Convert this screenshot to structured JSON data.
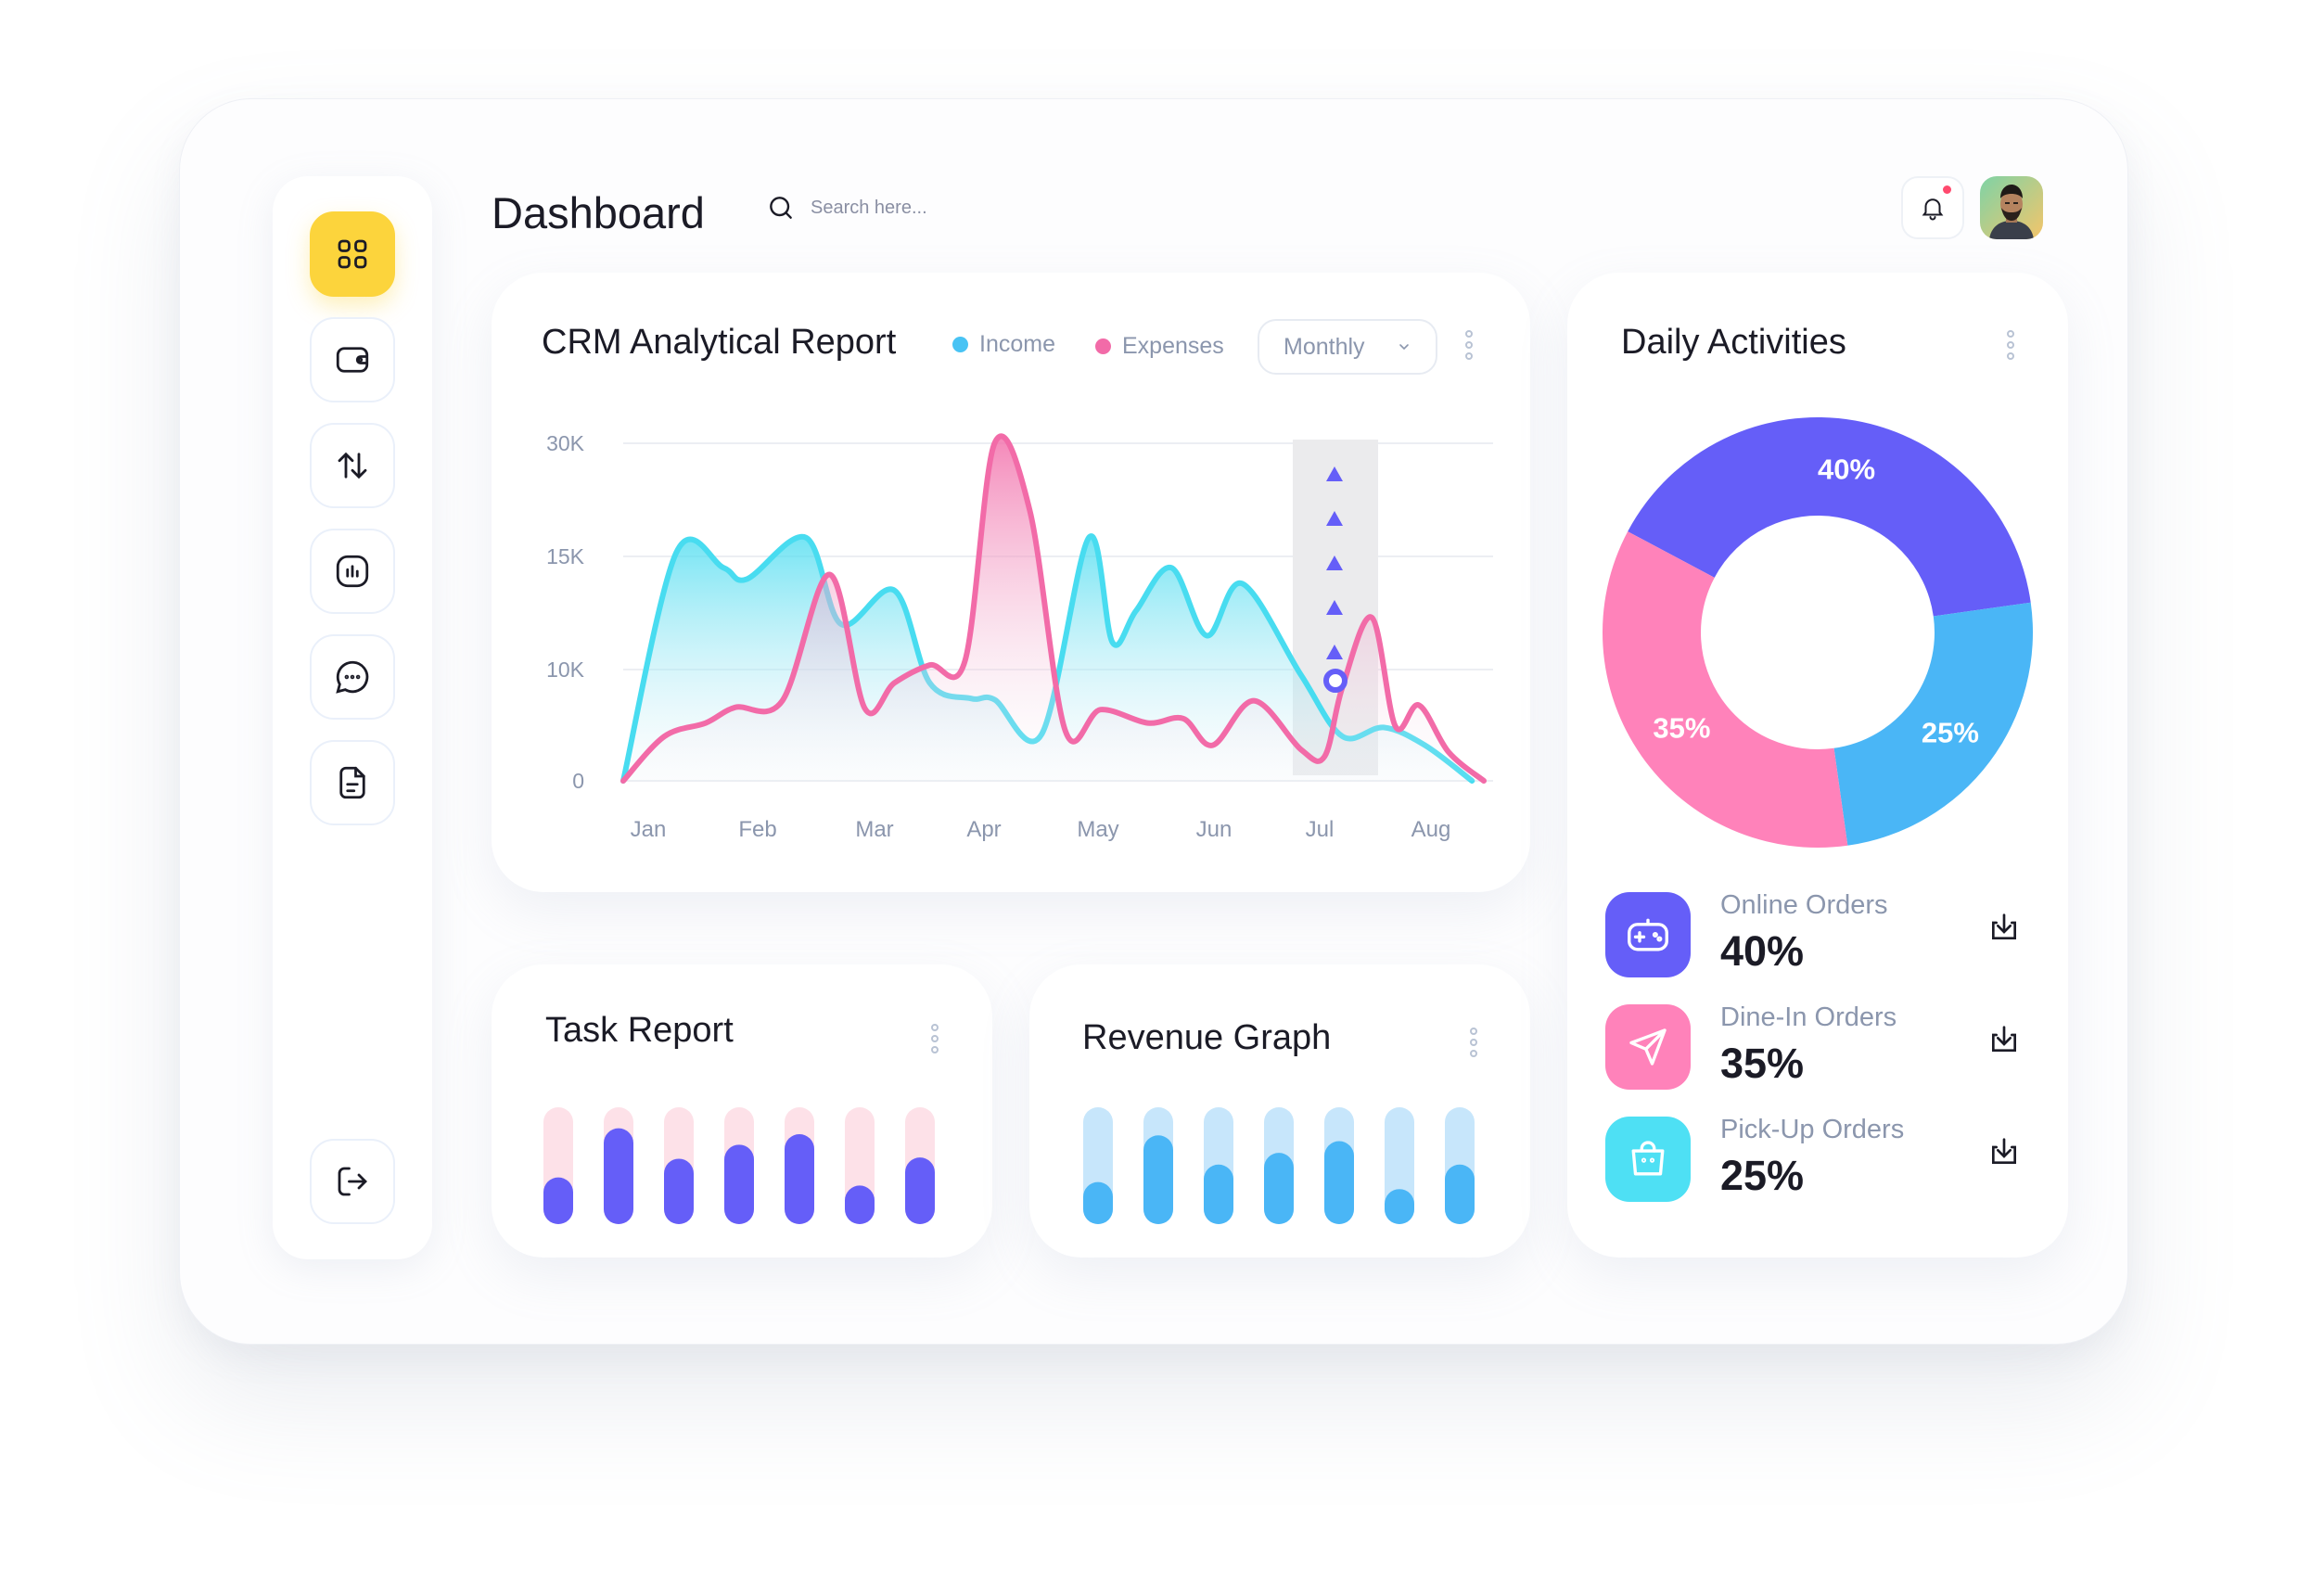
{
  "header": {
    "title": "Dashboard",
    "search_placeholder": "Search here..."
  },
  "sidebar": {
    "items": [
      {
        "icon": "grid-icon",
        "active": true
      },
      {
        "icon": "wallet-icon",
        "active": false
      },
      {
        "icon": "transfer-icon",
        "active": false
      },
      {
        "icon": "chart-icon",
        "active": false
      },
      {
        "icon": "chat-icon",
        "active": false
      },
      {
        "icon": "document-icon",
        "active": false
      }
    ],
    "logout_icon": "logout-icon"
  },
  "crm": {
    "title": "CRM Analytical Report",
    "legend": [
      {
        "label": "Income",
        "color": "#48c3f4"
      },
      {
        "label": "Expenses",
        "color": "#f26ba8"
      }
    ],
    "period": "Monthly"
  },
  "chart_data": [
    {
      "type": "area",
      "title": "CRM Analytical Report",
      "categories": [
        "Jan",
        "Feb",
        "Mar",
        "Apr",
        "May",
        "Jun",
        "Jul",
        "Aug"
      ],
      "y_ticks": [
        "30K",
        "15K",
        "10K",
        "0"
      ],
      "legend_placement": "top",
      "grid": true,
      "series": [
        {
          "name": "Income",
          "color": "#48dcf0",
          "x": [
            0,
            0.45,
            0.85,
            1.05,
            1.55,
            1.85,
            2.3,
            2.6,
            2.95,
            3.15,
            3.55,
            3.95,
            4.15,
            4.35,
            4.65,
            4.95,
            5.25,
            5.75,
            6.1,
            6.45,
            6.8,
            7.2
          ],
          "y": [
            0,
            15.5,
            14.5,
            14,
            17.5,
            12,
            13.5,
            8.8,
            7.4,
            7.3,
            4.2,
            17.5,
            11.2,
            12.6,
            14.5,
            11.5,
            13.8,
            9.5,
            4,
            4.8,
            3.2,
            0
          ]
        },
        {
          "name": "Expenses",
          "color": "#f26ba8",
          "x": [
            0,
            0.35,
            0.7,
            0.95,
            1.35,
            1.75,
            2.05,
            2.3,
            2.6,
            2.9,
            3.15,
            3.45,
            3.75,
            4.05,
            4.45,
            4.75,
            5.0,
            5.35,
            5.75,
            5.95,
            6.1,
            6.35,
            6.55,
            6.75,
            7.0,
            7.3
          ],
          "y": [
            0,
            4,
            5.2,
            6.6,
            7.2,
            14.2,
            6.5,
            8.8,
            10.2,
            10.4,
            30,
            21,
            4.5,
            6.4,
            5.2,
            5.6,
            3.2,
            7.2,
            2.8,
            2.2,
            8.4,
            12.3,
            4.9,
            6.8,
            2.6,
            0
          ]
        }
      ],
      "highlight": {
        "category": "Jul",
        "value": 9
      }
    },
    {
      "type": "bar",
      "title": "Task Report",
      "values": [
        0.4,
        0.82,
        0.56,
        0.68,
        0.77,
        0.33,
        0.57
      ],
      "color": "#655ef8",
      "track_color": "#fde1e8"
    },
    {
      "type": "bar",
      "title": "Revenue Graph",
      "values": [
        0.36,
        0.76,
        0.51,
        0.61,
        0.71,
        0.3,
        0.51
      ],
      "color": "#4ab6f6",
      "track_color": "#c7e6fb"
    },
    {
      "type": "pie",
      "title": "Daily Activities",
      "slices": [
        {
          "label": "40%",
          "value": 40,
          "color": "#655ef8"
        },
        {
          "label": "25%",
          "value": 25,
          "color": "#4ab6f6"
        },
        {
          "label": "35%",
          "value": 35,
          "color": "#ff82ba"
        }
      ]
    }
  ],
  "task_report": {
    "title": "Task Report"
  },
  "revenue_graph": {
    "title": "Revenue Graph"
  },
  "daily": {
    "title": "Daily Activities",
    "orders": [
      {
        "label": "Online Orders",
        "value": "40%",
        "color": "#655ef8",
        "icon": "gamepad-icon"
      },
      {
        "label": "Dine-In Orders",
        "value": "35%",
        "color": "#ff82ba",
        "icon": "send-icon"
      },
      {
        "label": "Pick-Up Orders",
        "value": "25%",
        "color": "#4ee0f4",
        "icon": "bag-icon"
      }
    ]
  }
}
